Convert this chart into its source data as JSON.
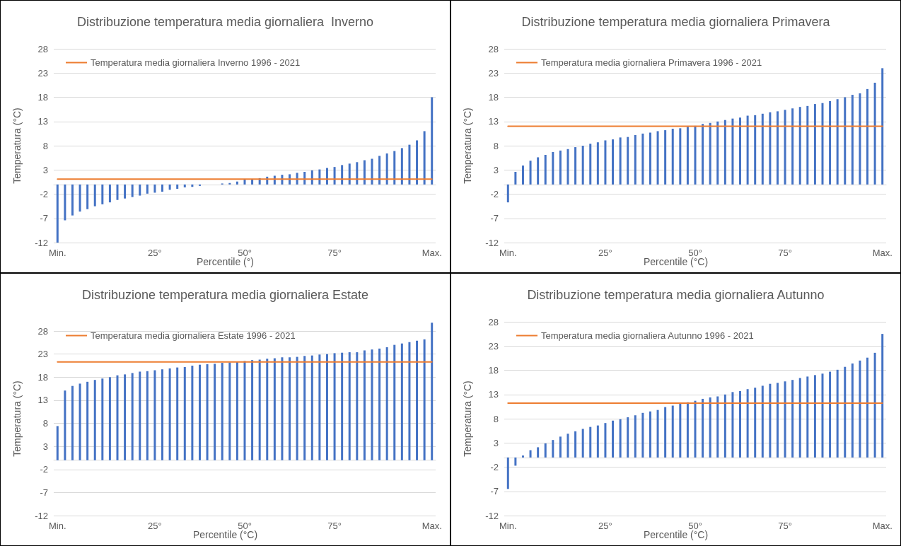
{
  "chart_data": [
    {
      "type": "bar",
      "title": "Distribuzione temperatura media giornaliera  Inverno",
      "xlabel": "Percentile (°)",
      "ylabel": "Temperatura (°C)",
      "categories": [
        "Min.",
        null,
        null,
        null,
        null,
        null,
        null,
        null,
        null,
        null,
        null,
        null,
        null,
        "25°",
        null,
        null,
        null,
        null,
        null,
        null,
        null,
        null,
        null,
        null,
        null,
        "50°",
        null,
        null,
        null,
        null,
        null,
        null,
        null,
        null,
        null,
        null,
        null,
        "75°",
        null,
        null,
        null,
        null,
        null,
        null,
        null,
        null,
        null,
        null,
        null,
        null,
        "Max."
      ],
      "series": [
        {
          "color": "#4472c4",
          "values": [
            -12.0,
            -7.4,
            -6.4,
            -5.6,
            -5.1,
            -4.5,
            -4.1,
            -3.7,
            -3.2,
            -2.9,
            -2.6,
            -2.3,
            -1.9,
            -1.7,
            -1.5,
            -1.1,
            -0.9,
            -0.6,
            -0.5,
            -0.3,
            0,
            0,
            0.2,
            0.3,
            0.6,
            1.1,
            1.1,
            1.3,
            1.6,
            1.8,
            2.0,
            2.1,
            2.4,
            2.6,
            2.9,
            3.1,
            3.4,
            3.6,
            4.0,
            4.3,
            4.6,
            5.0,
            5.3,
            5.9,
            6.4,
            6.9,
            7.5,
            8.2,
            9.1,
            11.0,
            18.0
          ]
        },
        {
          "type": "line",
          "name": "Temperatura media giornaliera Inverno 1996 - 2021",
          "color": "#ed7d31",
          "values": [
            1.1,
            1.1,
            1.1,
            1.1,
            1.1,
            1.1,
            1.1,
            1.1,
            1.1,
            1.1,
            1.1,
            1.1,
            1.1,
            1.1,
            1.1,
            1.1,
            1.1,
            1.1,
            1.1,
            1.1,
            1.1,
            1.1,
            1.1,
            1.1,
            1.1,
            1.1,
            1.1,
            1.1,
            1.1,
            1.1,
            1.1,
            1.1,
            1.1,
            1.1,
            1.1,
            1.1,
            1.1,
            1.1,
            1.1,
            1.1,
            1.1,
            1.1,
            1.1,
            1.1,
            1.1,
            1.1,
            1.1,
            1.1,
            1.1,
            1.1,
            1.1
          ]
        }
      ],
      "ylim": [
        -12,
        28
      ],
      "yticks": [
        -12,
        -7,
        -2,
        3,
        8,
        13,
        18,
        23,
        28
      ],
      "grid": "y",
      "legend": "top left",
      "marker": "none",
      "line_style": "solid"
    },
    {
      "type": "bar",
      "title": "Distribuzione temperatura media giornaliera Primavera",
      "xlabel": "Percentile (°C)",
      "ylabel": "Temperatura (°C)",
      "categories": [
        "Min.",
        null,
        null,
        null,
        null,
        null,
        null,
        null,
        null,
        null,
        null,
        null,
        null,
        "25°",
        null,
        null,
        null,
        null,
        null,
        null,
        null,
        null,
        null,
        null,
        null,
        "50°",
        null,
        null,
        null,
        null,
        null,
        null,
        null,
        null,
        null,
        null,
        null,
        "75°",
        null,
        null,
        null,
        null,
        null,
        null,
        null,
        null,
        null,
        null,
        null,
        null,
        "Max."
      ],
      "series": [
        {
          "color": "#4472c4",
          "values": [
            -3.7,
            2.6,
            3.9,
            4.9,
            5.6,
            6.1,
            6.7,
            7.0,
            7.3,
            7.7,
            8.0,
            8.4,
            8.7,
            9.1,
            9.3,
            9.7,
            9.8,
            10.2,
            10.5,
            10.7,
            11.0,
            11.2,
            11.5,
            11.6,
            11.9,
            12.1,
            12.5,
            12.7,
            13.0,
            13.3,
            13.6,
            13.8,
            14.2,
            14.3,
            14.6,
            14.9,
            15.1,
            15.4,
            15.7,
            16.0,
            16.2,
            16.6,
            16.8,
            17.2,
            17.6,
            18.0,
            18.5,
            18.8,
            19.7,
            21.0,
            24.0
          ]
        },
        {
          "type": "line",
          "name": "Temperatura media giornaliera Primavera 1996 - 2021",
          "color": "#ed7d31",
          "values": [
            12.0,
            12.0,
            12.0,
            12.0,
            12.0,
            12.0,
            12.0,
            12.0,
            12.0,
            12.0,
            12.0,
            12.0,
            12.0,
            12.0,
            12.0,
            12.0,
            12.0,
            12.0,
            12.0,
            12.0,
            12.0,
            12.0,
            12.0,
            12.0,
            12.0,
            12.0,
            12.0,
            12.0,
            12.0,
            12.0,
            12.0,
            12.0,
            12.0,
            12.0,
            12.0,
            12.0,
            12.0,
            12.0,
            12.0,
            12.0,
            12.0,
            12.0,
            12.0,
            12.0,
            12.0,
            12.0,
            12.0,
            12.0,
            12.0,
            12.0,
            12.0
          ]
        }
      ],
      "ylim": [
        -12,
        28
      ],
      "yticks": [
        -12,
        -7,
        -2,
        3,
        8,
        13,
        18,
        23,
        28
      ],
      "grid": "y",
      "legend": "top left",
      "marker": "none",
      "line_style": "solid"
    },
    {
      "type": "bar",
      "title": "Distribuzione temperatura media giornaliera Estate",
      "xlabel": "Percentile (°C)",
      "ylabel": "Temperatura (°C)",
      "categories": [
        "Min.",
        null,
        null,
        null,
        null,
        null,
        null,
        null,
        null,
        null,
        null,
        null,
        null,
        "25°",
        null,
        null,
        null,
        null,
        null,
        null,
        null,
        null,
        null,
        null,
        null,
        "50°",
        null,
        null,
        null,
        null,
        null,
        null,
        null,
        null,
        null,
        null,
        null,
        "75°",
        null,
        null,
        null,
        null,
        null,
        null,
        null,
        null,
        null,
        null,
        null,
        null,
        "Max."
      ],
      "series": [
        {
          "color": "#4472c4",
          "values": [
            7.4,
            15.1,
            16.1,
            16.6,
            17.0,
            17.4,
            17.7,
            18.0,
            18.4,
            18.6,
            18.9,
            19.2,
            19.3,
            19.5,
            19.7,
            19.9,
            20.1,
            20.2,
            20.5,
            20.7,
            20.8,
            20.9,
            21.1,
            21.2,
            21.3,
            21.5,
            21.7,
            21.8,
            22.0,
            22.1,
            22.3,
            22.3,
            22.4,
            22.6,
            22.7,
            22.9,
            23.0,
            23.2,
            23.3,
            23.4,
            23.4,
            23.8,
            24.0,
            24.2,
            24.5,
            25.0,
            25.3,
            25.6,
            25.9,
            26.2,
            29.8
          ]
        },
        {
          "type": "line",
          "name": "Temperatura media giornaliera Estate 1996 - 2021",
          "color": "#ed7d31",
          "values": [
            21.3,
            21.3,
            21.3,
            21.3,
            21.3,
            21.3,
            21.3,
            21.3,
            21.3,
            21.3,
            21.3,
            21.3,
            21.3,
            21.3,
            21.3,
            21.3,
            21.3,
            21.3,
            21.3,
            21.3,
            21.3,
            21.3,
            21.3,
            21.3,
            21.3,
            21.3,
            21.3,
            21.3,
            21.3,
            21.3,
            21.3,
            21.3,
            21.3,
            21.3,
            21.3,
            21.3,
            21.3,
            21.3,
            21.3,
            21.3,
            21.3,
            21.3,
            21.3,
            21.3,
            21.3,
            21.3,
            21.3,
            21.3,
            21.3,
            21.3,
            21.3
          ]
        }
      ],
      "ylim": [
        -12,
        30
      ],
      "yticks": [
        -12,
        -7,
        -2,
        3,
        8,
        13,
        18,
        23,
        28
      ],
      "grid": "y",
      "legend": "top left",
      "marker": "none",
      "line_style": "solid"
    },
    {
      "type": "bar",
      "title": "Distribuzione temperatura media giornaliera Autunno",
      "xlabel": "Percentile (°C)",
      "ylabel": "Temperatura (°C)",
      "categories": [
        "Min.",
        null,
        null,
        null,
        null,
        null,
        null,
        null,
        null,
        null,
        null,
        null,
        null,
        "25°",
        null,
        null,
        null,
        null,
        null,
        null,
        null,
        null,
        null,
        null,
        null,
        "50°",
        null,
        null,
        null,
        null,
        null,
        null,
        null,
        null,
        null,
        null,
        null,
        "75°",
        null,
        null,
        null,
        null,
        null,
        null,
        null,
        null,
        null,
        null,
        null,
        null,
        "Max."
      ],
      "series": [
        {
          "color": "#4472c4",
          "values": [
            -6.5,
            -1.7,
            0.4,
            1.5,
            2.1,
            2.9,
            3.6,
            4.3,
            4.9,
            5.4,
            5.9,
            6.3,
            6.6,
            7.1,
            7.6,
            7.9,
            8.3,
            8.7,
            9.2,
            9.5,
            9.8,
            10.4,
            10.7,
            11.1,
            11.4,
            11.7,
            12.1,
            12.4,
            12.6,
            13.0,
            13.5,
            13.7,
            14.1,
            14.4,
            14.8,
            15.2,
            15.4,
            15.7,
            16.0,
            16.4,
            16.7,
            17.0,
            17.3,
            17.7,
            18.1,
            18.7,
            19.4,
            20.0,
            20.6,
            21.6,
            25.5
          ]
        },
        {
          "type": "line",
          "name": "Temperatura media giornaliera Autunno 1996 - 2021",
          "color": "#ed7d31",
          "values": [
            11.2,
            11.2,
            11.2,
            11.2,
            11.2,
            11.2,
            11.2,
            11.2,
            11.2,
            11.2,
            11.2,
            11.2,
            11.2,
            11.2,
            11.2,
            11.2,
            11.2,
            11.2,
            11.2,
            11.2,
            11.2,
            11.2,
            11.2,
            11.2,
            11.2,
            11.2,
            11.2,
            11.2,
            11.2,
            11.2,
            11.2,
            11.2,
            11.2,
            11.2,
            11.2,
            11.2,
            11.2,
            11.2,
            11.2,
            11.2,
            11.2,
            11.2,
            11.2,
            11.2,
            11.2,
            11.2,
            11.2,
            11.2,
            11.2,
            11.2,
            11.2
          ]
        }
      ],
      "ylim": [
        -12,
        28
      ],
      "yticks": [
        -12,
        -7,
        -2,
        3,
        8,
        13,
        18,
        23,
        28
      ],
      "grid": "y",
      "legend": "top left",
      "marker": "none",
      "line_style": "solid"
    }
  ]
}
